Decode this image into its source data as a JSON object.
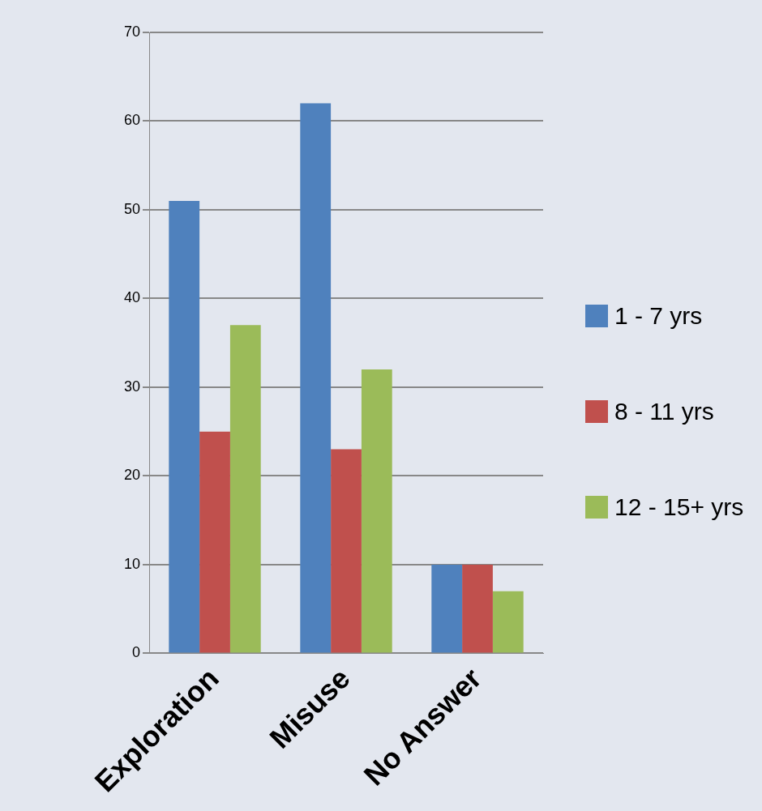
{
  "chart_data": {
    "type": "bar",
    "categories": [
      "Exploration",
      "Misuse",
      "No Answer"
    ],
    "series": [
      {
        "name": "1 - 7 yrs",
        "color": "#4f81bd",
        "values": [
          51,
          62,
          10
        ]
      },
      {
        "name": "8 - 11 yrs",
        "color": "#c0504d",
        "values": [
          25,
          23,
          10
        ]
      },
      {
        "name": "12 - 15+ yrs",
        "color": "#9bbb59",
        "values": [
          37,
          32,
          7
        ]
      }
    ],
    "ylim": [
      0,
      70
    ],
    "yticks": [
      0,
      10,
      20,
      30,
      40,
      50,
      60,
      70
    ],
    "grid": "y",
    "legend": "right"
  }
}
